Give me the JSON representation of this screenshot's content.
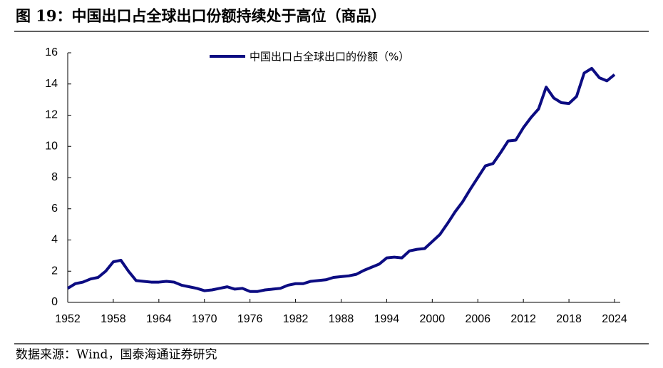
{
  "chart_data": {
    "type": "line",
    "title": "图 19：中国出口占全球出口份额持续处于高位（商品）",
    "source": "数据来源：Wind，国泰海通证券研究",
    "x": [
      1952,
      1953,
      1954,
      1955,
      1956,
      1957,
      1958,
      1959,
      1960,
      1961,
      1962,
      1963,
      1964,
      1965,
      1966,
      1967,
      1968,
      1969,
      1970,
      1971,
      1972,
      1973,
      1974,
      1975,
      1976,
      1977,
      1978,
      1979,
      1980,
      1981,
      1982,
      1983,
      1984,
      1985,
      1986,
      1987,
      1988,
      1989,
      1990,
      1991,
      1992,
      1993,
      1994,
      1995,
      1996,
      1997,
      1998,
      1999,
      2000,
      2001,
      2002,
      2003,
      2004,
      2005,
      2006,
      2007,
      2008,
      2009,
      2010,
      2011,
      2012,
      2013,
      2014,
      2015,
      2016,
      2017,
      2018,
      2019,
      2020,
      2021,
      2022,
      2023,
      2024
    ],
    "series": [
      {
        "name": "中国出口占全球出口的份额（%）",
        "color": "#0c0c82",
        "values": [
          0.9,
          1.2,
          1.3,
          1.5,
          1.6,
          2.0,
          2.6,
          2.7,
          2.0,
          1.4,
          1.35,
          1.3,
          1.3,
          1.35,
          1.3,
          1.1,
          1.0,
          0.9,
          0.75,
          0.8,
          0.9,
          1.0,
          0.85,
          0.9,
          0.7,
          0.7,
          0.8,
          0.85,
          0.9,
          1.1,
          1.2,
          1.2,
          1.35,
          1.4,
          1.45,
          1.6,
          1.65,
          1.7,
          1.8,
          2.05,
          2.25,
          2.45,
          2.85,
          2.9,
          2.85,
          3.3,
          3.4,
          3.45,
          3.9,
          4.35,
          5.05,
          5.8,
          6.45,
          7.25,
          8.0,
          8.75,
          8.9,
          9.6,
          10.35,
          10.4,
          11.2,
          11.85,
          12.4,
          13.8,
          13.1,
          12.8,
          12.75,
          13.2,
          14.7,
          15.0,
          14.4,
          14.2,
          14.6
        ]
      }
    ],
    "xlim": [
      1952,
      2024
    ],
    "xticks": [
      1952,
      1958,
      1964,
      1970,
      1976,
      1982,
      1988,
      1994,
      2000,
      2006,
      2012,
      2018,
      2024
    ],
    "ylim": [
      0,
      16
    ],
    "yticks": [
      0,
      2,
      4,
      6,
      8,
      10,
      12,
      14,
      16
    ],
    "legend": "top"
  }
}
